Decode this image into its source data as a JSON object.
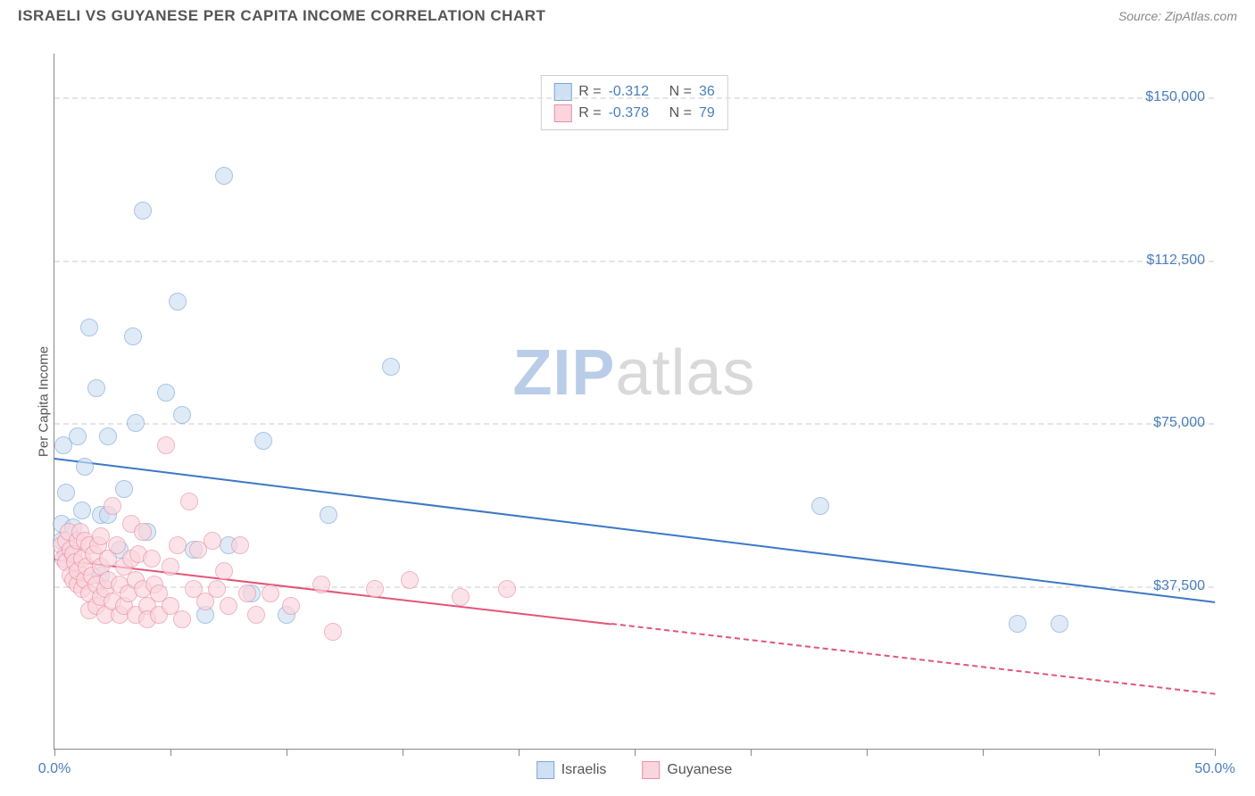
{
  "header": {
    "title": "ISRAELI VS GUYANESE PER CAPITA INCOME CORRELATION CHART",
    "source": "Source: ZipAtlas.com"
  },
  "chart": {
    "type": "scatter",
    "ylabel": "Per Capita Income",
    "xlim": [
      0,
      50
    ],
    "ylim": [
      0,
      160000
    ],
    "xtick_positions": [
      0,
      5,
      10,
      15,
      20,
      25,
      30,
      35,
      40,
      45,
      50
    ],
    "xtick_labels": {
      "0": "0.0%",
      "50": "50.0%"
    },
    "ytick_positions": [
      37500,
      75000,
      112500,
      150000
    ],
    "ytick_labels": [
      "$37,500",
      "$75,000",
      "$112,500",
      "$150,000"
    ],
    "grid_color": "#e5e5e5",
    "axis_color": "#888888",
    "background_color": "#ffffff",
    "tick_label_color": "#4a7ebb",
    "marker_radius": 10,
    "marker_stroke_width": 1.5,
    "series": [
      {
        "name": "Israelis",
        "fill": "#cfe0f3",
        "stroke": "#7aa6d6",
        "fill_opacity": 0.65,
        "trend": {
          "x1": 0,
          "y1": 67000,
          "x2": 50,
          "y2": 34000,
          "color": "#3b78c4",
          "dash_from_x": 50
        },
        "points": [
          [
            0.3,
            52000
          ],
          [
            0.3,
            48000
          ],
          [
            0.4,
            70000
          ],
          [
            0.5,
            59000
          ],
          [
            0.5,
            45000
          ],
          [
            0.8,
            51000
          ],
          [
            1.0,
            72000
          ],
          [
            1.2,
            55000
          ],
          [
            1.3,
            65000
          ],
          [
            1.5,
            97000
          ],
          [
            1.8,
            83000
          ],
          [
            2.0,
            54000
          ],
          [
            2.0,
            40000
          ],
          [
            2.3,
            72000
          ],
          [
            2.3,
            54000
          ],
          [
            2.8,
            46000
          ],
          [
            3.0,
            60000
          ],
          [
            3.4,
            95000
          ],
          [
            3.5,
            75000
          ],
          [
            3.8,
            124000
          ],
          [
            4.0,
            50000
          ],
          [
            4.8,
            82000
          ],
          [
            5.3,
            103000
          ],
          [
            5.5,
            77000
          ],
          [
            6.0,
            46000
          ],
          [
            6.5,
            31000
          ],
          [
            7.3,
            132000
          ],
          [
            7.5,
            47000
          ],
          [
            8.5,
            36000
          ],
          [
            9.0,
            71000
          ],
          [
            10.0,
            31000
          ],
          [
            11.8,
            54000
          ],
          [
            14.5,
            88000
          ],
          [
            33.0,
            56000
          ],
          [
            41.5,
            29000
          ],
          [
            43.3,
            29000
          ]
        ]
      },
      {
        "name": "Guyanese",
        "fill": "#fbd5de",
        "stroke": "#e890a5",
        "fill_opacity": 0.65,
        "trend": {
          "x1": 0,
          "y1": 44000,
          "x2": 50,
          "y2": 13000,
          "color": "#e25577",
          "dash_from_x": 24
        },
        "points": [
          [
            0.3,
            47000
          ],
          [
            0.4,
            44000
          ],
          [
            0.5,
            48000
          ],
          [
            0.5,
            43000
          ],
          [
            0.6,
            50000
          ],
          [
            0.7,
            40000
          ],
          [
            0.7,
            46000
          ],
          [
            0.8,
            45000
          ],
          [
            0.8,
            39000
          ],
          [
            0.9,
            43000
          ],
          [
            1.0,
            48000
          ],
          [
            1.0,
            38000
          ],
          [
            1.0,
            41000
          ],
          [
            1.1,
            50000
          ],
          [
            1.2,
            37000
          ],
          [
            1.2,
            44000
          ],
          [
            1.3,
            48000
          ],
          [
            1.3,
            39000
          ],
          [
            1.4,
            42000
          ],
          [
            1.5,
            36000
          ],
          [
            1.5,
            47000
          ],
          [
            1.5,
            32000
          ],
          [
            1.6,
            40000
          ],
          [
            1.7,
            45000
          ],
          [
            1.8,
            38000
          ],
          [
            1.8,
            33000
          ],
          [
            1.9,
            47000
          ],
          [
            2.0,
            35000
          ],
          [
            2.0,
            42000
          ],
          [
            2.0,
            49000
          ],
          [
            2.2,
            37000
          ],
          [
            2.2,
            31000
          ],
          [
            2.3,
            44000
          ],
          [
            2.3,
            39000
          ],
          [
            2.5,
            34000
          ],
          [
            2.5,
            56000
          ],
          [
            2.7,
            47000
          ],
          [
            2.8,
            31000
          ],
          [
            2.8,
            38000
          ],
          [
            3.0,
            33000
          ],
          [
            3.0,
            42000
          ],
          [
            3.2,
            36000
          ],
          [
            3.3,
            52000
          ],
          [
            3.3,
            44000
          ],
          [
            3.5,
            31000
          ],
          [
            3.5,
            39000
          ],
          [
            3.6,
            45000
          ],
          [
            3.8,
            37000
          ],
          [
            3.8,
            50000
          ],
          [
            4.0,
            33000
          ],
          [
            4.0,
            30000
          ],
          [
            4.2,
            44000
          ],
          [
            4.3,
            38000
          ],
          [
            4.5,
            31000
          ],
          [
            4.5,
            36000
          ],
          [
            4.8,
            70000
          ],
          [
            5.0,
            33000
          ],
          [
            5.0,
            42000
          ],
          [
            5.3,
            47000
          ],
          [
            5.5,
            30000
          ],
          [
            5.8,
            57000
          ],
          [
            6.0,
            37000
          ],
          [
            6.2,
            46000
          ],
          [
            6.5,
            34000
          ],
          [
            6.8,
            48000
          ],
          [
            7.0,
            37000
          ],
          [
            7.3,
            41000
          ],
          [
            7.5,
            33000
          ],
          [
            8.0,
            47000
          ],
          [
            8.3,
            36000
          ],
          [
            8.7,
            31000
          ],
          [
            9.3,
            36000
          ],
          [
            10.2,
            33000
          ],
          [
            11.5,
            38000
          ],
          [
            12.0,
            27000
          ],
          [
            13.8,
            37000
          ],
          [
            15.3,
            39000
          ],
          [
            17.5,
            35000
          ],
          [
            19.5,
            37000
          ]
        ]
      }
    ],
    "legend_top": [
      {
        "swatch_fill": "#cfe0f3",
        "swatch_stroke": "#7aa6d6",
        "r_label": "R =",
        "r_val": "-0.312",
        "n_label": "N =",
        "n_val": "36"
      },
      {
        "swatch_fill": "#fbd5de",
        "swatch_stroke": "#e890a5",
        "r_label": "R =",
        "r_val": "-0.378",
        "n_label": "N =",
        "n_val": "79"
      }
    ],
    "legend_bottom": [
      {
        "swatch_fill": "#cfe0f3",
        "swatch_stroke": "#7aa6d6",
        "label": "Israelis"
      },
      {
        "swatch_fill": "#fbd5de",
        "swatch_stroke": "#e890a5",
        "label": "Guyanese"
      }
    ],
    "watermark": {
      "left": "ZIP",
      "right": "atlas"
    }
  }
}
